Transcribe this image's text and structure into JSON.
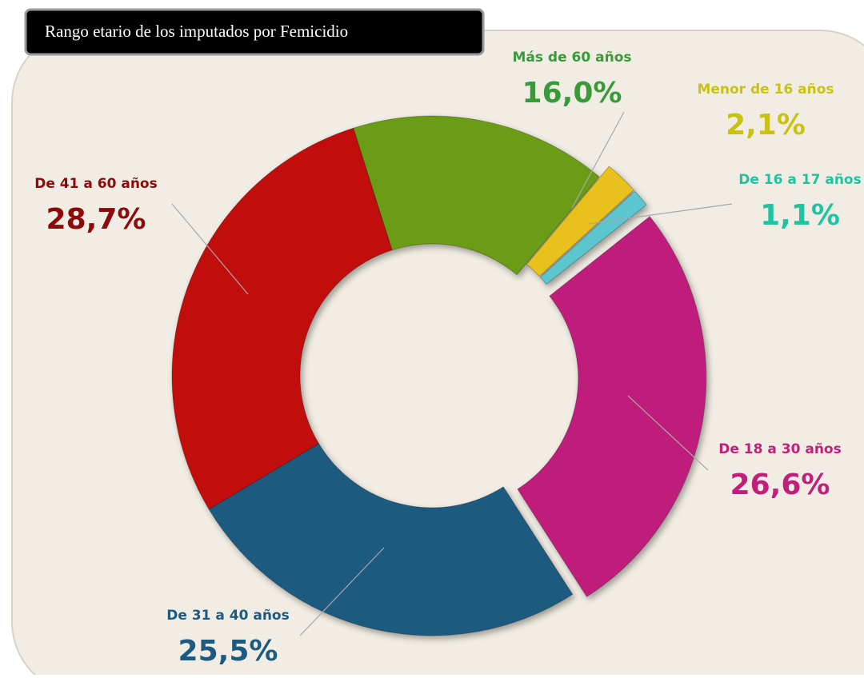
{
  "chart_data": {
    "type": "donut",
    "title": "Rango etario de los imputados por Femicidio",
    "categories": [
      "Menor de 16 años",
      "De 16 a 17 años",
      "De 18 a 30 años",
      "De 31 a 40 años",
      "De 41 a 60 años",
      "Más de 60 años"
    ],
    "values": [
      2.1,
      1.1,
      26.6,
      25.5,
      28.7,
      16.0
    ],
    "value_labels": [
      "2,1%",
      "1,1%",
      "26,6%",
      "25,5%",
      "28,7%",
      "16,0%"
    ],
    "colors": [
      "#e8c11a",
      "#5cc6cf",
      "#c01f7c",
      "#1d5a80",
      "#c20a0a",
      "#6b9c12"
    ],
    "label_colors": [
      "#c9c213",
      "#1fc3a2",
      "#c01f7c",
      "#1d5a80",
      "#8c0a0a",
      "#3a9a3a"
    ],
    "explode": [
      true,
      true,
      true,
      false,
      false,
      false
    ]
  }
}
